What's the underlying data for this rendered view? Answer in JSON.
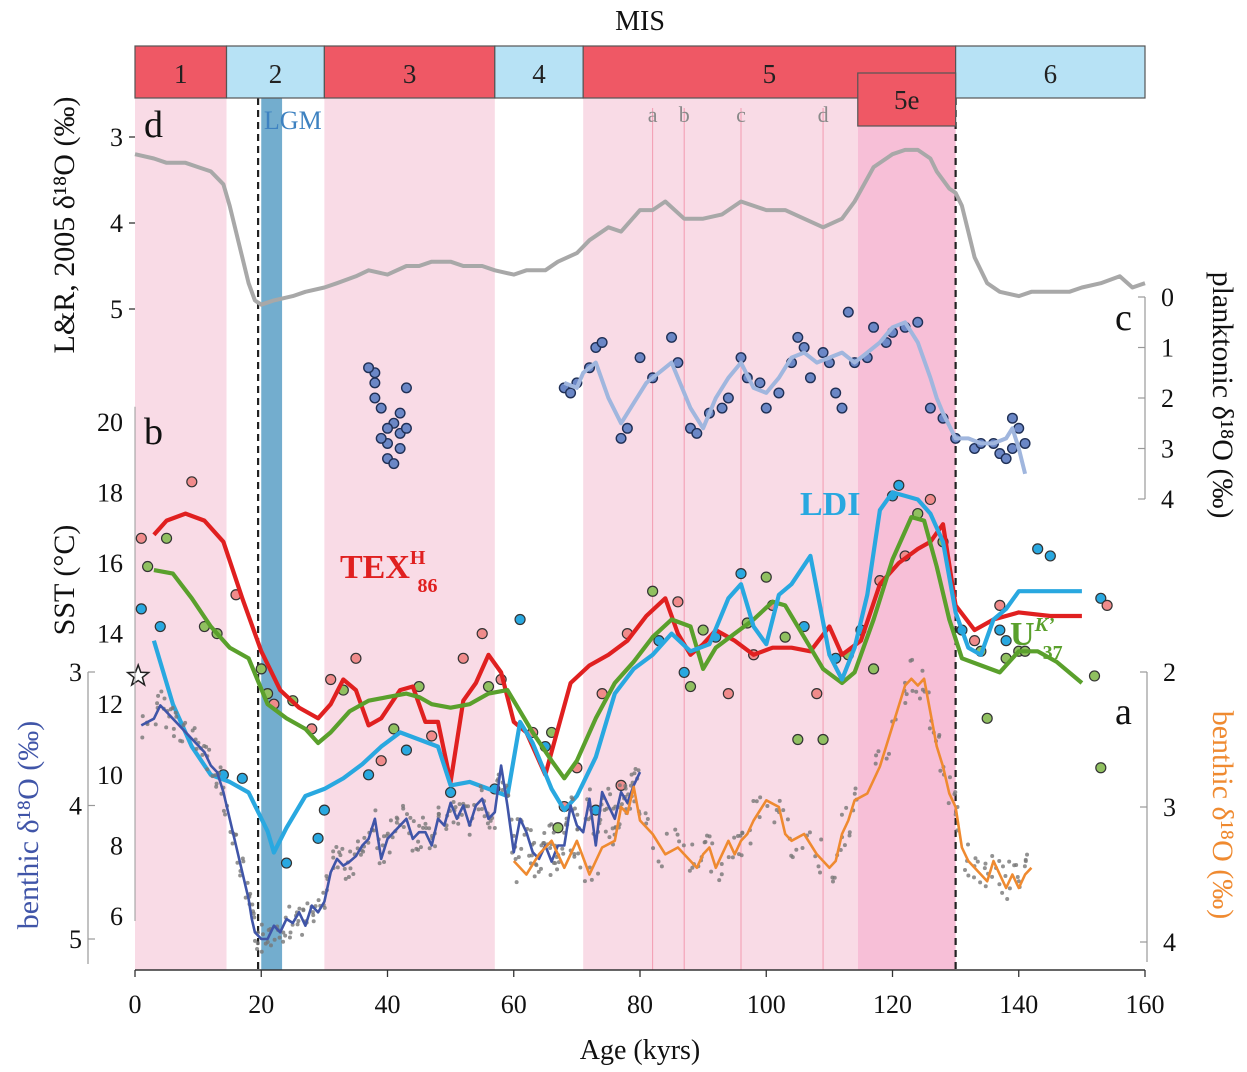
{
  "chart_data": {
    "type": "line",
    "mis": {
      "title": "MIS",
      "stages": [
        {
          "label": "1",
          "start": 0,
          "end": 14.5,
          "color": "#ef5865"
        },
        {
          "label": "2",
          "start": 14.5,
          "end": 30,
          "color": "#b7e2f5"
        },
        {
          "label": "3",
          "start": 30,
          "end": 57,
          "color": "#ef5865"
        },
        {
          "label": "4",
          "start": 57,
          "end": 71,
          "color": "#b7e2f5"
        },
        {
          "label": "5",
          "start": 71,
          "end": 130,
          "color": "#ef5865"
        },
        {
          "label": "6",
          "start": 130,
          "end": 160,
          "color": "#b7e2f5"
        }
      ],
      "substage": {
        "label": "5e",
        "start": 114.5,
        "end": 130,
        "color": "#ef5865"
      }
    },
    "bands": [
      {
        "start": 0,
        "end": 14.5,
        "color": "#f9dbe6"
      },
      {
        "start": 30,
        "end": 57,
        "color": "#f9dbe6"
      },
      {
        "start": 71,
        "end": 114.5,
        "color": "#f9dbe6"
      },
      {
        "start": 114.5,
        "end": 130,
        "color": "#f7bfd7"
      }
    ],
    "lgm": {
      "label": "LGM",
      "start": 20,
      "end": 23.3,
      "color": "#5a9fc6",
      "dashed_lines": [
        19.5,
        130
      ]
    },
    "substage_lines": [
      {
        "label": "a",
        "x": 82
      },
      {
        "label": "b",
        "x": 87
      },
      {
        "label": "c",
        "x": 96
      },
      {
        "label": "d",
        "x": 109
      }
    ],
    "panel_labels": [
      "d",
      "c",
      "b",
      "a"
    ],
    "x_axis": {
      "label": "Age (kyrs)",
      "min": 0,
      "max": 160,
      "ticks": [
        0,
        20,
        40,
        60,
        80,
        100,
        120,
        140,
        160
      ]
    },
    "panel_d": {
      "ylabel": "L&R, 2005 δ¹⁸O (‰)",
      "yticks": [
        3,
        4,
        5
      ],
      "color": "#a8a8a8",
      "x": [
        0,
        3,
        5,
        8,
        10,
        12,
        14,
        15,
        16,
        17,
        18,
        19,
        20,
        22,
        25,
        27,
        30,
        32,
        35,
        37,
        40,
        43,
        45,
        47,
        50,
        52,
        55,
        57,
        60,
        62,
        65,
        67,
        70,
        72,
        75,
        77,
        80,
        82,
        84,
        87,
        90,
        93,
        96,
        100,
        103,
        106,
        109,
        112,
        114,
        117,
        120,
        122,
        124,
        126,
        127,
        129,
        130,
        131,
        132,
        133,
        135,
        137,
        140,
        142,
        145,
        148,
        150,
        153,
        156,
        158,
        160
      ],
      "values": [
        3.2,
        3.25,
        3.3,
        3.3,
        3.35,
        3.4,
        3.55,
        3.8,
        4.1,
        4.4,
        4.7,
        4.9,
        4.95,
        4.9,
        4.85,
        4.8,
        4.75,
        4.7,
        4.62,
        4.55,
        4.6,
        4.5,
        4.5,
        4.45,
        4.45,
        4.5,
        4.5,
        4.55,
        4.6,
        4.55,
        4.55,
        4.45,
        4.35,
        4.2,
        4.05,
        4.1,
        3.85,
        3.85,
        3.75,
        3.95,
        3.95,
        3.9,
        3.75,
        3.85,
        3.85,
        3.95,
        4.05,
        3.95,
        3.75,
        3.35,
        3.2,
        3.15,
        3.15,
        3.25,
        3.4,
        3.6,
        3.65,
        3.8,
        4.1,
        4.4,
        4.7,
        4.8,
        4.85,
        4.8,
        4.8,
        4.8,
        4.75,
        4.7,
        4.62,
        4.75,
        4.7
      ]
    },
    "panel_c": {
      "ylabel": "planktonic δ¹⁸O (‰)",
      "yticks": [
        0,
        1,
        2,
        3,
        4
      ],
      "color": "#a0b6de",
      "x": [
        68,
        70,
        71,
        73,
        75,
        77,
        79,
        81,
        83,
        85,
        86,
        88,
        90,
        92,
        94,
        96,
        98,
        100,
        102,
        104,
        106,
        108,
        110,
        112,
        114,
        116,
        118,
        120,
        122,
        124,
        126,
        127,
        128,
        130,
        132,
        134,
        136,
        138,
        139,
        140,
        141
      ],
      "values": [
        1.7,
        1.8,
        1.5,
        1.3,
        2.0,
        2.5,
        2.1,
        1.7,
        1.5,
        1.3,
        1.6,
        2.2,
        2.6,
        2.0,
        1.6,
        1.3,
        1.8,
        1.9,
        1.6,
        1.2,
        1.1,
        1.3,
        1.2,
        1.1,
        1.3,
        1.1,
        0.9,
        0.6,
        0.5,
        0.9,
        1.6,
        2.0,
        2.3,
        2.8,
        2.8,
        2.9,
        2.9,
        2.8,
        2.6,
        3.0,
        3.5
      ]
    },
    "panel_b": {
      "ylabel": "SST (°C)",
      "yticks": [
        6,
        8,
        10,
        12,
        14,
        16,
        18,
        20
      ],
      "series": [
        {
          "name": "TEXH₈₆",
          "color": "#e02020",
          "x": [
            3,
            5,
            8,
            11,
            14,
            17,
            20,
            23,
            26,
            29,
            31,
            33,
            35,
            37,
            39,
            42,
            44,
            46,
            48,
            50,
            52,
            54,
            56,
            58,
            60,
            62,
            64,
            65,
            67,
            69,
            72,
            75,
            78,
            81,
            84,
            86,
            88,
            90,
            92,
            95,
            98,
            101,
            104,
            107,
            110,
            112,
            115,
            118,
            121,
            124,
            126,
            128,
            130,
            133,
            136,
            140,
            145,
            150
          ],
          "values": [
            16.8,
            17.2,
            17.4,
            17.2,
            16.6,
            15.0,
            13.5,
            12.4,
            11.9,
            11.6,
            12.0,
            12.7,
            12.4,
            11.4,
            11.6,
            12.4,
            12.5,
            11.5,
            11.5,
            9.8,
            12.1,
            12.6,
            13.4,
            12.9,
            11.5,
            11.2,
            10.4,
            10.0,
            11.3,
            12.6,
            13.1,
            13.4,
            13.8,
            14.5,
            15.0,
            14.0,
            13.4,
            13.7,
            14.1,
            13.8,
            13.4,
            13.6,
            13.6,
            13.5,
            14.2,
            13.4,
            13.8,
            15.4,
            16.0,
            16.4,
            16.6,
            17.1,
            14.8,
            14.1,
            14.4,
            14.6,
            14.5,
            14.5
          ]
        },
        {
          "name": "Uᴷ’₃₇",
          "color": "#5aa02c",
          "x": [
            3,
            6,
            9,
            12,
            15,
            18,
            21,
            24,
            27,
            29,
            31,
            34,
            37,
            40,
            43,
            45,
            47,
            50,
            53,
            56,
            59,
            61,
            63,
            66,
            68,
            70,
            73,
            76,
            79,
            82,
            85,
            88,
            90,
            92,
            95,
            98,
            101,
            103,
            106,
            109,
            112,
            114,
            117,
            120,
            123,
            125,
            127,
            129,
            131,
            134,
            137,
            140,
            143,
            146,
            150
          ],
          "values": [
            15.8,
            15.7,
            15.0,
            14.2,
            13.6,
            13.3,
            12.0,
            11.6,
            11.3,
            10.9,
            11.2,
            11.8,
            12.1,
            12.2,
            12.3,
            12.2,
            12.0,
            11.9,
            12.0,
            12.3,
            12.4,
            11.8,
            11.2,
            10.4,
            9.9,
            10.4,
            11.6,
            12.6,
            13.2,
            13.9,
            14.4,
            14.2,
            13.0,
            13.6,
            14.0,
            14.4,
            14.9,
            14.8,
            13.9,
            13.0,
            12.6,
            12.9,
            14.4,
            16.1,
            17.3,
            17.2,
            15.9,
            14.4,
            13.3,
            13.1,
            12.9,
            13.5,
            13.5,
            13.2,
            12.6
          ]
        },
        {
          "name": "LDI",
          "color": "#29a8e0",
          "x": [
            3,
            6,
            9,
            12,
            15,
            18,
            21,
            22,
            24,
            27,
            30,
            33,
            36,
            39,
            42,
            45,
            48,
            50,
            53,
            56,
            59,
            61,
            63,
            66,
            68,
            70,
            73,
            76,
            79,
            82,
            85,
            88,
            91,
            94,
            96,
            98,
            100,
            102,
            104,
            107,
            110,
            112,
            114,
            116,
            118,
            120,
            122,
            124,
            126,
            128,
            130,
            132,
            134,
            136,
            138,
            140,
            143,
            146,
            150
          ],
          "values": [
            13.8,
            12.0,
            10.8,
            10.0,
            9.8,
            9.5,
            8.4,
            7.8,
            8.5,
            9.4,
            9.6,
            9.9,
            10.3,
            10.8,
            11.2,
            11.0,
            10.8,
            9.7,
            9.8,
            9.6,
            9.4,
            11.5,
            10.9,
            9.6,
            9.0,
            9.4,
            10.5,
            12.3,
            13.0,
            13.4,
            14.0,
            13.5,
            13.7,
            15.0,
            15.4,
            14.2,
            13.7,
            15.1,
            15.4,
            16.2,
            13.4,
            12.7,
            13.6,
            15.1,
            17.5,
            18.0,
            17.9,
            17.8,
            17.4,
            16.6,
            14.6,
            13.6,
            13.4,
            14.4,
            14.7,
            15.2,
            15.2,
            15.2,
            15.2
          ]
        }
      ],
      "extra_markers": [
        {
          "name": "star",
          "x": 0.5,
          "value": 12.8
        }
      ]
    },
    "panel_a": {
      "left_ylabel": "benthic δ¹⁸O (‰)",
      "left_yticks": [
        3,
        4,
        5
      ],
      "left_color": "#4055a8",
      "right_ylabel": "benthic δ¹⁸O (‰)",
      "right_yticks": [
        2,
        3,
        4
      ],
      "right_color": "#ef8a30",
      "left_series": {
        "x": [
          1,
          3,
          4,
          5,
          6,
          7,
          9,
          10,
          11,
          12,
          13,
          14,
          15,
          16,
          17,
          18,
          18.5,
          19,
          20,
          21,
          22,
          23,
          24,
          25,
          26,
          27,
          28,
          29,
          30,
          31,
          32,
          33,
          34,
          35,
          36,
          37,
          38,
          39,
          40,
          41,
          42,
          43,
          44,
          45,
          46,
          47,
          48,
          49,
          50,
          51,
          52,
          53,
          54,
          55,
          56,
          57,
          58,
          59,
          60,
          61,
          62,
          63,
          64,
          65,
          66,
          67,
          68,
          69,
          70,
          71,
          72,
          73,
          74,
          75,
          76,
          77,
          78,
          79,
          80
        ],
        "values": [
          3.4,
          3.35,
          3.25,
          3.3,
          3.35,
          3.4,
          3.5,
          3.55,
          3.6,
          3.7,
          3.75,
          3.9,
          4.1,
          4.3,
          4.5,
          4.7,
          4.85,
          4.95,
          5.0,
          5.0,
          4.9,
          4.95,
          4.85,
          4.88,
          4.8,
          4.9,
          4.75,
          4.8,
          4.72,
          4.5,
          4.4,
          4.45,
          4.42,
          4.38,
          4.3,
          4.25,
          4.1,
          4.4,
          4.25,
          4.2,
          4.15,
          4.1,
          4.25,
          4.2,
          4.2,
          4.3,
          4.1,
          4.15,
          3.98,
          4.1,
          4.0,
          4.15,
          4.0,
          3.95,
          4.1,
          4.05,
          3.7,
          4.0,
          4.35,
          4.1,
          4.2,
          4.35,
          4.4,
          4.3,
          4.42,
          4.3,
          4.3,
          4.0,
          4.15,
          4.2,
          3.95,
          4.3,
          3.9,
          4.0,
          4.1,
          3.9,
          3.98,
          3.85,
          3.75
        ]
      },
      "right_series": {
        "x": [
          60,
          62,
          64,
          66,
          68,
          70,
          72,
          74,
          76,
          77,
          78,
          79,
          80,
          82,
          84,
          86,
          88,
          89,
          90,
          91,
          92,
          94,
          95,
          96,
          97,
          98,
          100,
          102,
          103,
          104,
          106,
          108,
          110,
          111,
          112,
          113,
          114,
          116,
          118,
          120,
          122,
          123,
          124,
          125,
          126,
          127,
          128,
          129,
          130,
          131,
          132,
          133,
          134,
          135,
          136,
          137,
          138,
          139,
          140,
          141,
          142
        ],
        "values": [
          3.4,
          3.5,
          3.35,
          3.25,
          3.45,
          3.25,
          3.5,
          3.3,
          3.25,
          3.0,
          3.05,
          2.85,
          3.1,
          3.2,
          3.35,
          3.3,
          3.4,
          3.45,
          3.35,
          3.3,
          3.45,
          3.25,
          3.35,
          3.25,
          3.2,
          3.1,
          2.95,
          3.0,
          3.2,
          3.25,
          3.2,
          3.35,
          3.45,
          3.4,
          3.2,
          3.1,
          2.95,
          2.9,
          2.7,
          2.4,
          2.1,
          2.05,
          2.1,
          2.05,
          2.3,
          2.55,
          2.7,
          2.9,
          3.0,
          3.3,
          3.4,
          3.45,
          3.5,
          3.55,
          3.4,
          3.5,
          3.6,
          3.5,
          3.6,
          3.5,
          3.45
        ]
      }
    }
  }
}
